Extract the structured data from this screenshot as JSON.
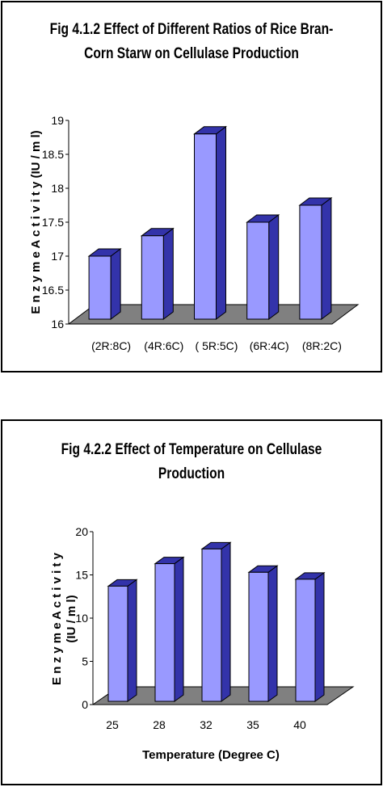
{
  "chart_data": [
    {
      "type": "bar",
      "title_line1": "Fig 4.1.2 Effect of Different Ratios of Rice Bran-",
      "title_line2": "Corn Starw on Cellulase Production",
      "categories": [
        "(2R:8C)",
        "(4R:6C)",
        "( 5R:5C)",
        "(6R:4C)",
        "(8R:2C)"
      ],
      "values": [
        17.0,
        17.3,
        18.8,
        17.5,
        17.75
      ],
      "yticks": [
        "16",
        "16.5",
        "17",
        "17.5",
        "18",
        "18.5",
        "19"
      ],
      "ylim": [
        16,
        19
      ],
      "ylabel": "E n z y m e   A c t i v i t y   (IU / m l)",
      "xlabel": "",
      "bar_color": "#9999ff",
      "floor_color": "#808080",
      "grid": false
    },
    {
      "type": "bar",
      "title_line1": "Fig 4.2.2 Effect of Temperature on Cellulase",
      "title_line2": "Production",
      "categories": [
        "25",
        "28",
        "32",
        "35",
        "40"
      ],
      "values": [
        13.7,
        16.3,
        18.0,
        15.3,
        14.5
      ],
      "yticks": [
        "0",
        "5",
        "10",
        "15",
        "20"
      ],
      "ylim": [
        0,
        20
      ],
      "ylabel_line1": "E n z y m e   A c t i v i t y",
      "ylabel_line2": "(IU / m l)",
      "xlabel": "Temperature (Degree C)",
      "bar_color": "#9999ff",
      "floor_color": "#808080",
      "grid": false
    }
  ]
}
